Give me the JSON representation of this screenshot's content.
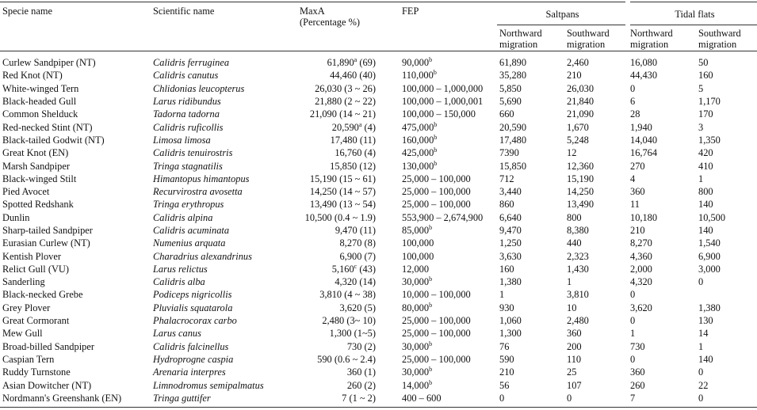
{
  "table": {
    "header": {
      "species": "Specie name",
      "scientific": "Scientific name",
      "maxa": "MaxA",
      "maxa_unit": "(Percentage %)",
      "fep": "FEP",
      "saltpans": "Saltpans",
      "tidal": "Tidal flats",
      "north": "Northward migration",
      "south": "Southward migration"
    },
    "rows": [
      [
        "Curlew Sandpiper (NT)",
        "Calidris ferruginea",
        {
          "value": "61,890",
          "note": "a",
          "range": "(69)"
        },
        {
          "value": "90,000",
          "note": "b"
        },
        "61,890",
        "2,460",
        "16,080",
        "50"
      ],
      [
        "Red Knot (NT)",
        "Calidris canutus",
        {
          "value": "44,460",
          "range": "(40)"
        },
        {
          "value": "110,000",
          "note": "b"
        },
        "35,280",
        "210",
        "44,430",
        "160"
      ],
      [
        "White-winged Tern",
        "Chlidonias leucopterus",
        {
          "value": "26,030",
          "range": "(3 ~ 26)"
        },
        {
          "value": "100,000 – 1,000,000"
        },
        "5,850",
        "26,030",
        "0",
        "5"
      ],
      [
        "Black-headed Gull",
        "Larus ridibundus",
        {
          "value": "21,880",
          "range": "(2 ~ 22)"
        },
        {
          "value": "100,000 – 1,000,001"
        },
        "5,690",
        "21,840",
        "6",
        "1,170"
      ],
      [
        "Common Shelduck",
        "Tadorna tadorna",
        {
          "value": "21,090",
          "range": "(14 ~ 21)"
        },
        {
          "value": "100,000 – 150,000"
        },
        "660",
        "21,090",
        "28",
        "170"
      ],
      [
        "Red-necked Stint (NT)",
        "Calidris ruficollis",
        {
          "value": "20,590",
          "note": "a",
          "range": "(4)"
        },
        {
          "value": "475,000",
          "note": "b"
        },
        "20,590",
        "1,670",
        "1,940",
        "3"
      ],
      [
        "Black-tailed Godwit (NT)",
        "Limosa limosa",
        {
          "value": "17,480",
          "range": "(11)"
        },
        {
          "value": "160,000",
          "note": "b"
        },
        "17,480",
        "5,248",
        "14,040",
        "1,350"
      ],
      [
        "Great Knot (EN)",
        "Calidris tenuirostris",
        {
          "value": "16,760",
          "range": "(4)"
        },
        {
          "value": "425,000",
          "note": "b"
        },
        "7390",
        "12",
        "16,764",
        "420"
      ],
      [
        "Marsh Sandpiper",
        "Tringa stagnatilis",
        {
          "value": "15,850",
          "range": "(12)"
        },
        {
          "value": "130,000",
          "note": "b"
        },
        "15,850",
        "12,360",
        "270",
        "410"
      ],
      [
        "Black-winged Stilt",
        "Himantopus himantopus",
        {
          "value": "15,190",
          "range": "(15 ~ 61)"
        },
        {
          "value": "25,000 – 100,000"
        },
        "712",
        "15,190",
        "4",
        "1"
      ],
      [
        "Pied Avocet",
        "Recurvirostra avosetta",
        {
          "value": "14,250",
          "range": "(14 ~ 57)"
        },
        {
          "value": "25,000 – 100,000"
        },
        "3,440",
        "14,250",
        "360",
        "800"
      ],
      [
        "Spotted Redshank",
        "Tringa erythropus",
        {
          "value": "13,490",
          "range": "(13 ~ 54)"
        },
        {
          "value": "25,000 – 100,000"
        },
        "860",
        "13,490",
        "11",
        "140"
      ],
      [
        "Dunlin",
        "Calidris alpina",
        {
          "value": "10,500",
          "range": "(0.4 ~ 1.9)"
        },
        {
          "value": "553,900 – 2,674,900"
        },
        "6,640",
        "800",
        "10,180",
        "10,500"
      ],
      [
        "Sharp-tailed Sandpiper",
        "Calidris acuminata",
        {
          "value": "9,470",
          "range": "(11)"
        },
        {
          "value": "85,000",
          "note": "b"
        },
        "9,470",
        "8,380",
        "210",
        "140"
      ],
      [
        "Eurasian Curlew (NT)",
        "Numenius arquata",
        {
          "value": "8,270",
          "range": "(8)"
        },
        {
          "value": "100,000"
        },
        "1,250",
        "440",
        "8,270",
        "1,540"
      ],
      [
        "Kentish Plover",
        "Charadrius alexandrinus",
        {
          "value": "6,900",
          "range": "(7)"
        },
        {
          "value": "100,000"
        },
        "3,630",
        "2,323",
        "4,360",
        "6,900"
      ],
      [
        "Relict Gull (VU)",
        "Larus relictus",
        {
          "value": "5,160",
          "note": "c",
          "range": "(43)"
        },
        {
          "value": "12,000"
        },
        "160",
        "1,430",
        "2,000",
        "3,000"
      ],
      [
        "Sanderling",
        "Calidris alba",
        {
          "value": "4,320",
          "range": "(14)"
        },
        {
          "value": "30,000",
          "note": "b"
        },
        "1,380",
        "1",
        "4,320",
        "0"
      ],
      [
        "Black-necked Grebe",
        "Podiceps nigricollis",
        {
          "value": "3,810",
          "range": "(4 ~ 38)"
        },
        {
          "value": "10,000 – 100,000"
        },
        "1",
        "3,810",
        "0",
        null
      ],
      [
        "Grey Plover",
        "Pluvialis squatarola",
        {
          "value": "3,620",
          "range": "(5)"
        },
        {
          "value": "80,000",
          "note": "b"
        },
        "930",
        "10",
        "3,620",
        "1,380"
      ],
      [
        "Great Cormorant",
        "Phalacrocorax carbo",
        {
          "value": "2,480",
          "range": "(3~ 10)"
        },
        {
          "value": "25,000 – 100,000"
        },
        "1,060",
        "2,480",
        "0",
        "130"
      ],
      [
        "Mew Gull",
        "Larus canus",
        {
          "value": "1,300",
          "range": "(1~5)"
        },
        {
          "value": "25,000 – 100,000"
        },
        "1,300",
        "360",
        "1",
        "14"
      ],
      [
        "Broad-billed Sandpiper",
        "Calidris falcinellus",
        {
          "value": "730",
          "range": "(2)"
        },
        {
          "value": "30,000",
          "note": "b"
        },
        "76",
        "200",
        "730",
        "1"
      ],
      [
        "Caspian Tern",
        "Hydroprogne caspia",
        {
          "value": "590",
          "range": "(0.6 ~ 2.4)"
        },
        {
          "value": "25,000 – 100,000"
        },
        "590",
        "110",
        "0",
        "140"
      ],
      [
        "Ruddy Turnstone",
        "Arenaria interpres",
        {
          "value": "360",
          "range": "(1)"
        },
        {
          "value": "30,000",
          "note": "b"
        },
        "210",
        "25",
        "360",
        "0"
      ],
      [
        "Asian Dowitcher (NT)",
        "Limnodromus semipalmatus",
        {
          "value": "260",
          "range": "(2)"
        },
        {
          "value": "14,000",
          "note": "b"
        },
        "56",
        "107",
        "260",
        "22"
      ],
      [
        "Nordmann's Greenshank (EN)",
        "Tringa guttifer",
        {
          "value": "7",
          "range": "(1 ~ 2)"
        },
        {
          "value": "400 – 600"
        },
        "0",
        "0",
        "7",
        "0"
      ]
    ]
  }
}
